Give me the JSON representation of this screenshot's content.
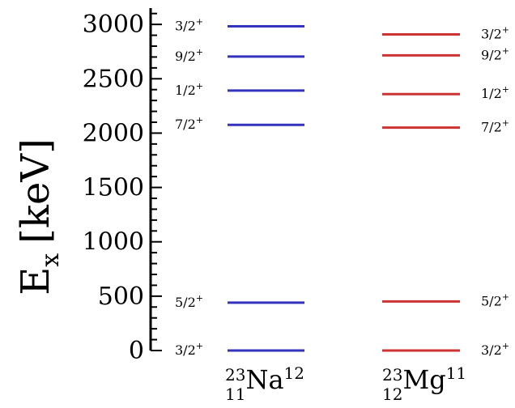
{
  "chart_data": {
    "type": "level-scheme",
    "ylabel": "E",
    "ylabel_sub": "x",
    "ylabel_unit": "[keV]",
    "ylim": [
      0,
      3150
    ],
    "yticks": [
      0,
      500,
      1000,
      1500,
      2000,
      2500,
      3000
    ],
    "minor_tick_step": 100,
    "series": [
      {
        "name": "Na",
        "mass_number": "23",
        "proton_number": "11",
        "neutron_number": "12",
        "color": "#3333bb",
        "label_side": "left",
        "levels": [
          {
            "energy": 0,
            "spin": "3/2",
            "parity": "+"
          },
          {
            "energy": 440,
            "spin": "5/2",
            "parity": "+"
          },
          {
            "energy": 2076,
            "spin": "7/2",
            "parity": "+"
          },
          {
            "energy": 2391,
            "spin": "1/2",
            "parity": "+"
          },
          {
            "energy": 2704,
            "spin": "9/2",
            "parity": "+"
          },
          {
            "energy": 2982,
            "spin": "3/2",
            "parity": "+"
          }
        ]
      },
      {
        "name": "Mg",
        "mass_number": "23",
        "proton_number": "12",
        "neutron_number": "11",
        "color": "#cc3333",
        "label_side": "right",
        "levels": [
          {
            "energy": 0,
            "spin": "3/2",
            "parity": "+"
          },
          {
            "energy": 451,
            "spin": "5/2",
            "parity": "+"
          },
          {
            "energy": 2051,
            "spin": "7/2",
            "parity": "+"
          },
          {
            "energy": 2359,
            "spin": "1/2",
            "parity": "+"
          },
          {
            "energy": 2715,
            "spin": "9/2",
            "parity": "+"
          },
          {
            "energy": 2908,
            "spin": "3/2",
            "parity": "+"
          }
        ]
      }
    ]
  }
}
